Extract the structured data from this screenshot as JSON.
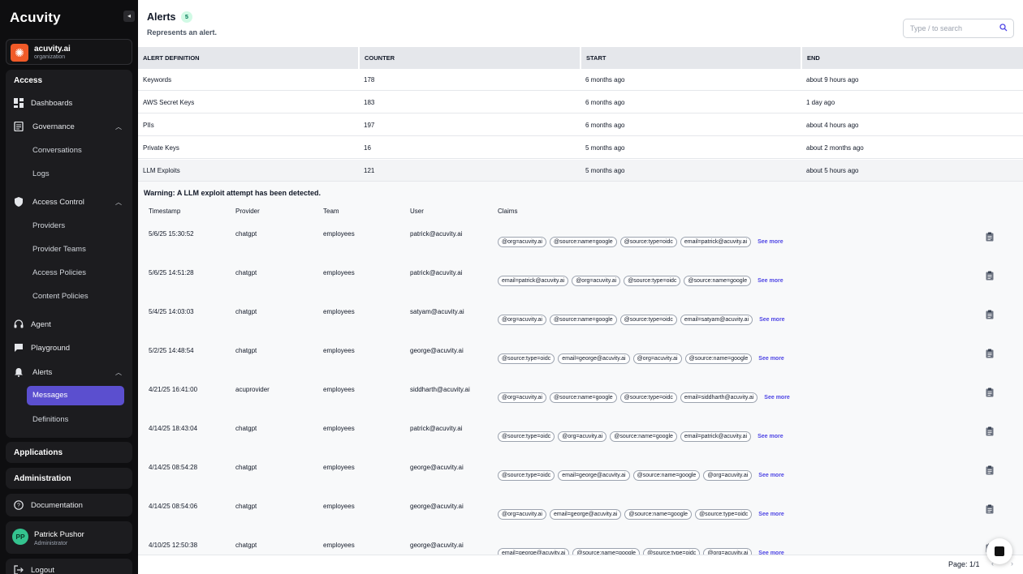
{
  "sidebar": {
    "logo": "Acuvity",
    "collapse_icon": "◂",
    "org": {
      "name": "acuvity.ai",
      "sub": "organization"
    },
    "access": {
      "title": "Access",
      "dashboards": "Dashboards",
      "governance": "Governance",
      "conversations": "Conversations",
      "logs": "Logs",
      "access_control": "Access Control",
      "providers": "Providers",
      "provider_teams": "Provider Teams",
      "access_policies": "Access Policies",
      "content_policies": "Content Policies",
      "agent": "Agent",
      "playground": "Playground",
      "alerts": "Alerts",
      "messages": "Messages",
      "definitions": "Definitions"
    },
    "applications": "Applications",
    "administration": "Administration",
    "documentation": "Documentation",
    "user": {
      "initials": "PP",
      "name": "Patrick Pushor",
      "role": "Administrator"
    },
    "logout": "Logout"
  },
  "header": {
    "title": "Alerts",
    "count": "5",
    "subtitle": "Represents an alert.",
    "search_placeholder": "Type / to search"
  },
  "table": {
    "headers": [
      "ALERT DEFINITION",
      "COUNTER",
      "START",
      "END"
    ],
    "rows": [
      [
        "Keywords",
        "178",
        "6 months ago",
        "about 9 hours ago"
      ],
      [
        "AWS Secret Keys",
        "183",
        "6 months ago",
        "1 day ago"
      ],
      [
        "PIIs",
        "197",
        "6 months ago",
        "about 4 hours ago"
      ],
      [
        "Private Keys",
        "16",
        "5 months ago",
        "about 2 months ago"
      ],
      [
        "LLM Exploits",
        "121",
        "5 months ago",
        "about 5 hours ago"
      ]
    ]
  },
  "detail": {
    "warning": "Warning: A LLM exploit attempt has been detected.",
    "headers": [
      "Timestamp",
      "Provider",
      "Team",
      "User",
      "Claims"
    ],
    "see_more": "See more",
    "rows": [
      {
        "ts": "5/6/25 15:30:52",
        "provider": "chatgpt",
        "team": "employees",
        "user": "patrick@acuvity.ai",
        "claims": [
          "@org=acuvity.ai",
          "@source:name=google",
          "@source:type=oidc",
          "email=patrick@acuvity.ai"
        ]
      },
      {
        "ts": "5/6/25 14:51:28",
        "provider": "chatgpt",
        "team": "employees",
        "user": "patrick@acuvity.ai",
        "claims": [
          "email=patrick@acuvity.ai",
          "@org=acuvity.ai",
          "@source:type=oidc",
          "@source:name=google"
        ]
      },
      {
        "ts": "5/4/25 14:03:03",
        "provider": "chatgpt",
        "team": "employees",
        "user": "satyam@acuvity.ai",
        "claims": [
          "@org=acuvity.ai",
          "@source:name=google",
          "@source:type=oidc",
          "email=satyam@acuvity.ai"
        ]
      },
      {
        "ts": "5/2/25 14:48:54",
        "provider": "chatgpt",
        "team": "employees",
        "user": "george@acuvity.ai",
        "claims": [
          "@source:type=oidc",
          "email=george@acuvity.ai",
          "@org=acuvity.ai",
          "@source:name=google"
        ]
      },
      {
        "ts": "4/21/25 16:41:00",
        "provider": "acuprovider",
        "team": "employees",
        "user": "siddharth@acuvity.ai",
        "claims": [
          "@org=acuvity.ai",
          "@source:name=google",
          "@source:type=oidc",
          "email=siddharth@acuvity.ai"
        ]
      },
      {
        "ts": "4/14/25 18:43:04",
        "provider": "chatgpt",
        "team": "employees",
        "user": "patrick@acuvity.ai",
        "claims": [
          "@source:type=oidc",
          "@org=acuvity.ai",
          "@source:name=google",
          "email=patrick@acuvity.ai"
        ]
      },
      {
        "ts": "4/14/25 08:54:28",
        "provider": "chatgpt",
        "team": "employees",
        "user": "george@acuvity.ai",
        "claims": [
          "@source:type=oidc",
          "email=george@acuvity.ai",
          "@source:name=google",
          "@org=acuvity.ai"
        ]
      },
      {
        "ts": "4/14/25 08:54:06",
        "provider": "chatgpt",
        "team": "employees",
        "user": "george@acuvity.ai",
        "claims": [
          "@org=acuvity.ai",
          "email=george@acuvity.ai",
          "@source:name=google",
          "@source:type=oidc"
        ]
      },
      {
        "ts": "4/10/25 12:50:38",
        "provider": "chatgpt",
        "team": "employees",
        "user": "george@acuvity.ai",
        "claims": [
          "email=george@acuvity.ai",
          "@source:name=google",
          "@source:type=oidc",
          "@org=acuvity.ai"
        ]
      }
    ]
  },
  "footer": {
    "pager": "Page: 1/1",
    "prev": "‹",
    "next": "›"
  },
  "colors": {
    "accent": "#5b4fcf",
    "sidebar_bg": "#0e0e10",
    "org_logo": "#f05a28",
    "badge_bg": "#d1fae5"
  }
}
